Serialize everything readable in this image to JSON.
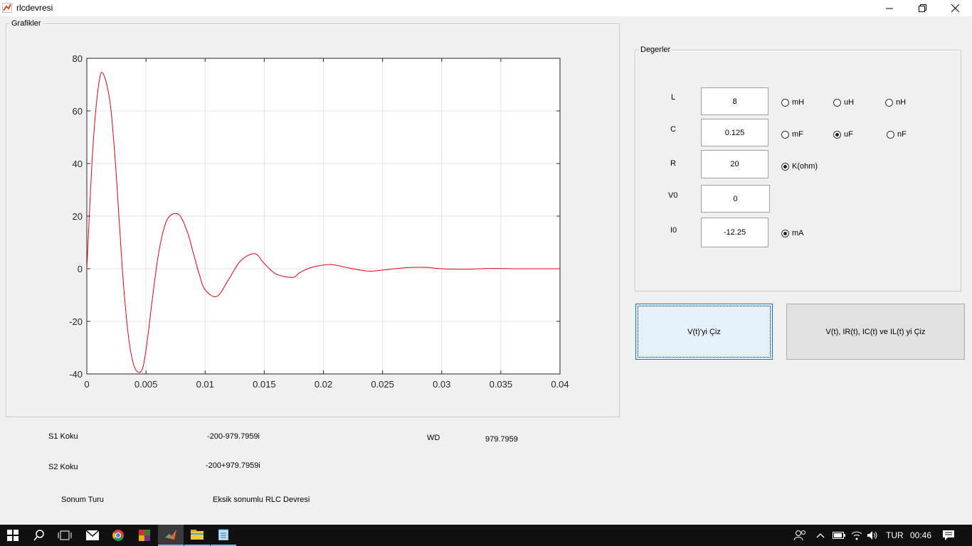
{
  "window": {
    "title": "rlcdevresi"
  },
  "graph_panel": {
    "title": "Grafikler"
  },
  "values_panel": {
    "title": "Degerler",
    "rows": [
      {
        "label": "L",
        "value": "8",
        "units": [
          {
            "label": "mH",
            "checked": false
          },
          {
            "label": "uH",
            "checked": false
          },
          {
            "label": "nH",
            "checked": false
          }
        ]
      },
      {
        "label": "C",
        "value": "0.125",
        "units": [
          {
            "label": "mF",
            "checked": false
          },
          {
            "label": "uF",
            "checked": true
          },
          {
            "label": "nF",
            "checked": false
          }
        ]
      },
      {
        "label": "R",
        "value": "20",
        "units": [
          {
            "label": "K(ohm)",
            "checked": true
          }
        ]
      },
      {
        "label": "V0",
        "value": "0",
        "units": []
      },
      {
        "label": "I0",
        "value": "-12.25",
        "units": [
          {
            "label": "mA",
            "checked": true
          }
        ]
      }
    ]
  },
  "buttons": {
    "plot_v": "V(t)'yi Çiz",
    "plot_all": "V(t), IR(t), IC(t) ve IL(t) yi Çiz"
  },
  "results": {
    "s1_label": "S1 Koku",
    "s1_value": "-200-979.7959i",
    "s2_label": "S2 Koku",
    "s2_value": "-200+979.7959i",
    "wd_label": "WD",
    "wd_value": "979.7959",
    "type_label": "Sonum Turu",
    "type_value": "Eksik sonumlu RLC Devresi"
  },
  "chart_data": {
    "type": "line",
    "xlim": [
      0,
      0.04
    ],
    "ylim": [
      -40,
      80
    ],
    "xticks": [
      "0",
      "0.005",
      "0.01",
      "0.015",
      "0.02",
      "0.025",
      "0.03",
      "0.035",
      "0.04"
    ],
    "yticks": [
      "80",
      "60",
      "40",
      "20",
      "0",
      "-20",
      "-40"
    ],
    "grid": true,
    "series_color": "#e8000b",
    "series": [
      {
        "x": [
          0,
          0.0005,
          0.001,
          0.0014,
          0.002,
          0.0025,
          0.003,
          0.0035,
          0.004,
          0.0046,
          0.005,
          0.0055,
          0.006,
          0.0065,
          0.007,
          0.0078,
          0.0085,
          0.009,
          0.0095,
          0.01,
          0.011,
          0.012,
          0.013,
          0.0142,
          0.015,
          0.016,
          0.0174,
          0.018,
          0.019,
          0.0206,
          0.022,
          0.0238,
          0.025,
          0.027,
          0.0286,
          0.03,
          0.032,
          0.034,
          0.036,
          0.038,
          0.04
        ],
        "y": [
          0,
          45,
          70,
          74,
          62,
          35,
          0,
          -25,
          -37,
          -39,
          -31,
          -13,
          4,
          15,
          20,
          20.5,
          14,
          6,
          -2,
          -8,
          -10.5,
          -4,
          3,
          5.7,
          2,
          -2,
          -3.3,
          -1.5,
          0.5,
          1.6,
          0.4,
          -0.9,
          -0.5,
          0.4,
          0.5,
          0,
          -0.2,
          0.1,
          0,
          0,
          0
        ]
      }
    ]
  },
  "taskbar": {
    "language": "TUR",
    "time": "00:46"
  }
}
